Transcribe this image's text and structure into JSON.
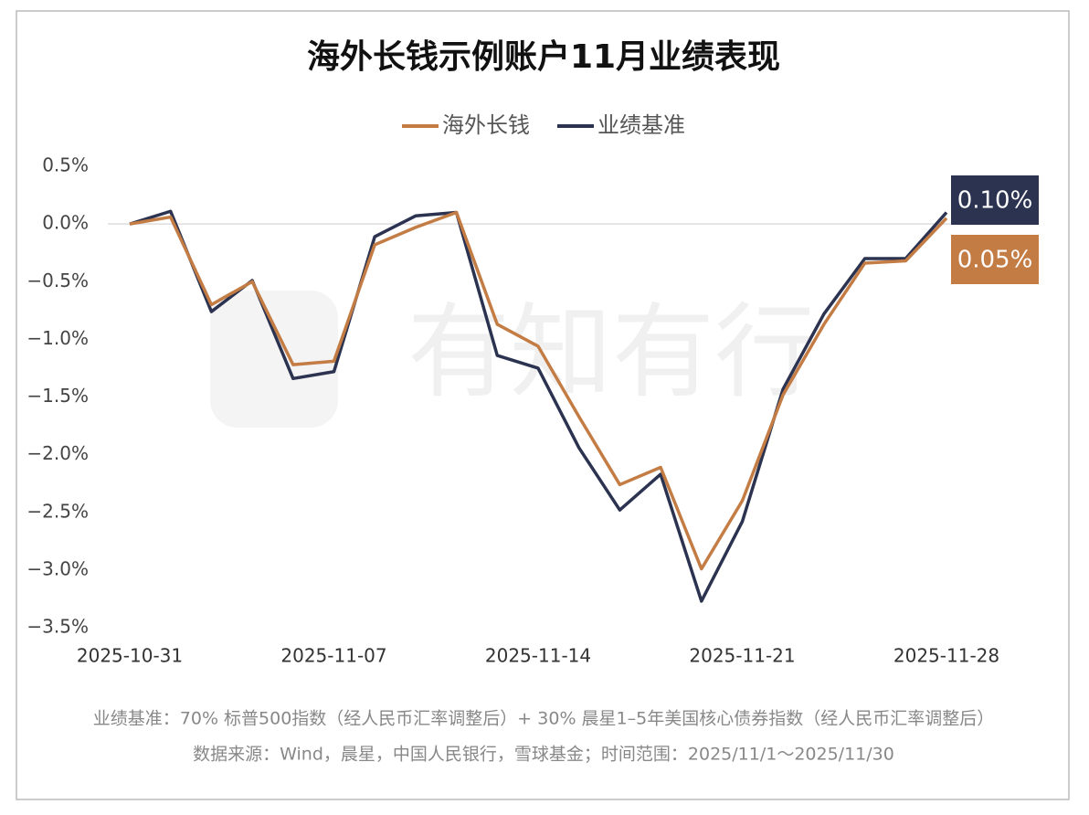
{
  "chart_data": {
    "type": "line",
    "title": "海外长钱示例账户11月业绩表现",
    "watermark": "有知有行",
    "categories": [
      "2025-10-31",
      null,
      null,
      null,
      null,
      "2025-11-07",
      null,
      null,
      null,
      null,
      "2025-11-14",
      null,
      null,
      null,
      null,
      "2025-11-21",
      null,
      null,
      null,
      null,
      "2025-11-28"
    ],
    "series": [
      {
        "name": "海外长钱",
        "color": "#c47c45",
        "values": [
          0.0,
          0.06,
          -0.7,
          -0.5,
          -1.22,
          -1.19,
          -0.18,
          -0.03,
          0.1,
          -0.87,
          -1.06,
          -1.67,
          -2.26,
          -2.11,
          -2.99,
          -2.4,
          -1.48,
          -0.87,
          -0.34,
          -0.32,
          0.05
        ],
        "value_labels": [
          null,
          null,
          null,
          null,
          null,
          null,
          null,
          null,
          null,
          null,
          null,
          null,
          null,
          null,
          null,
          null,
          null,
          null,
          null,
          null,
          "0.05%"
        ]
      },
      {
        "name": "业绩基准",
        "color": "#2b3350",
        "values": [
          0.0,
          0.11,
          -0.76,
          -0.49,
          -1.34,
          -1.28,
          -0.11,
          0.07,
          0.1,
          -1.14,
          -1.25,
          -1.94,
          -2.48,
          -2.17,
          -3.27,
          -2.58,
          -1.43,
          -0.78,
          -0.3,
          -0.3,
          0.1
        ],
        "value_labels": [
          null,
          null,
          null,
          null,
          null,
          null,
          null,
          null,
          null,
          null,
          null,
          null,
          null,
          null,
          null,
          null,
          null,
          null,
          null,
          null,
          "0.10%"
        ]
      }
    ],
    "ylim": [
      -3.5,
      0.5
    ],
    "yticks": [
      {
        "value": 0.5,
        "label": "0.5%"
      },
      {
        "value": 0,
        "label": "0.0%"
      },
      {
        "value": -0.5,
        "label": "−0.5%"
      },
      {
        "value": -1,
        "label": "−1.0%"
      },
      {
        "value": -1.5,
        "label": "−1.5%"
      },
      {
        "value": -2,
        "label": "−2.0%"
      },
      {
        "value": -2.5,
        "label": "−2.5%"
      },
      {
        "value": -3,
        "label": "−3.0%"
      },
      {
        "value": -3.5,
        "label": "−3.5%"
      }
    ],
    "grid": false,
    "legend": "top",
    "notes": [
      "业绩基准：70% 标普500指数（经人民币汇率调整后）+ 30% 晨星1–5年美国核心债券指数（经人民币汇率调整后）",
      "数据来源：Wind，晨星，中国人民银行，雪球基金；时间范围：2025/11/1～2025/11/30"
    ]
  }
}
